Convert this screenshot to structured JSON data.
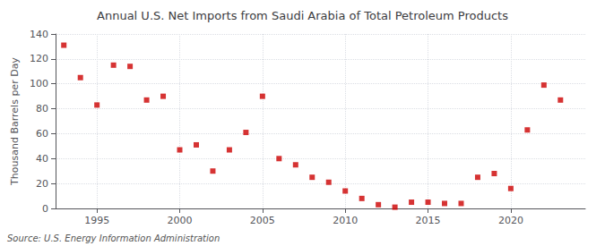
{
  "chart_data": {
    "type": "scatter",
    "title": "Annual U.S. Net Imports from Saudi Arabia of Total Petroleum Products",
    "ylabel": "Thousand Barrels per Day",
    "source": "Source: U.S. Energy Information Administration",
    "x": [
      1993,
      1994,
      1995,
      1996,
      1997,
      1998,
      1999,
      2000,
      2001,
      2002,
      2003,
      2004,
      2005,
      2006,
      2007,
      2008,
      2009,
      2010,
      2011,
      2012,
      2013,
      2014,
      2015,
      2016,
      2017,
      2018,
      2019,
      2020,
      2021,
      2022,
      2023
    ],
    "values": [
      131,
      105,
      83,
      115,
      114,
      87,
      90,
      47,
      51,
      30,
      47,
      61,
      90,
      40,
      35,
      25,
      21,
      14,
      8,
      3,
      1,
      5,
      5,
      4,
      4,
      25,
      28,
      16,
      63,
      99,
      87
    ],
    "color": "#cc0000",
    "marker": "square",
    "xlim": [
      1992.5,
      2024.5
    ],
    "ylim": [
      0,
      140
    ],
    "xticks": [
      1995,
      2000,
      2005,
      2010,
      2015,
      2020
    ],
    "yticks": [
      0,
      20,
      40,
      60,
      80,
      100,
      120,
      140
    ],
    "grid": true
  }
}
